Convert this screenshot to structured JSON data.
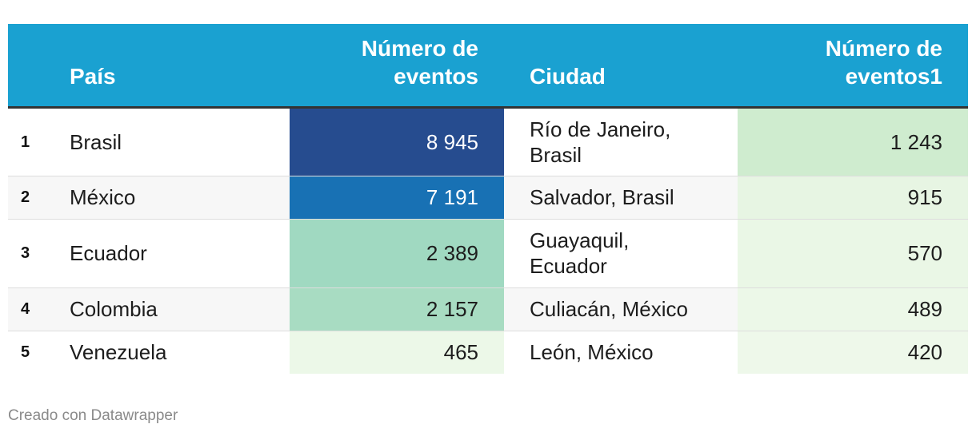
{
  "header": {
    "rank": "",
    "country": "País",
    "country_events": "Número de eventos",
    "city": "Ciudad",
    "city_events": "Número de eventos1"
  },
  "rows": [
    {
      "rank": "1",
      "country": "Brasil",
      "country_events": "8 945",
      "city": "Río de Janeiro, Brasil",
      "city_events": "1 243",
      "country_color": "#264c8f",
      "country_text_color": "#ffffff",
      "city_color": "#cfeccf"
    },
    {
      "rank": "2",
      "country": "México",
      "country_events": "7 191",
      "city": "Salvador, Brasil",
      "city_events": "915",
      "country_color": "#1871b4",
      "country_text_color": "#ffffff",
      "city_color": "#e7f5e3"
    },
    {
      "rank": "3",
      "country": "Ecuador",
      "country_events": "2 389",
      "city": "Guayaquil, Ecuador",
      "city_events": "570",
      "country_color": "#a0d9c1",
      "country_text_color": "#1d1d1d",
      "city_color": "#eaf7e6"
    },
    {
      "rank": "4",
      "country": "Colombia",
      "country_events": "2 157",
      "city": "Culiacán, México",
      "city_events": "489",
      "country_color": "#a8dcc2",
      "country_text_color": "#1d1d1d",
      "city_color": "#ecf8e8"
    },
    {
      "rank": "5",
      "country": "Venezuela",
      "country_events": "465",
      "city": "León, México",
      "city_events": "420",
      "country_color": "#ecf8e8",
      "country_text_color": "#1d1d1d",
      "city_color": "#eef8ea"
    }
  ],
  "chart_data": {
    "type": "table",
    "columns": [
      "",
      "País",
      "Número de eventos",
      "Ciudad",
      "Número de eventos1"
    ],
    "rows": [
      [
        "1",
        "Brasil",
        8945,
        "Río de Janeiro, Brasil",
        1243
      ],
      [
        "2",
        "México",
        7191,
        "Salvador, Brasil",
        915
      ],
      [
        "3",
        "Ecuador",
        2389,
        "Guayaquil, Ecuador",
        570
      ],
      [
        "4",
        "Colombia",
        2157,
        "Culiacán, México",
        489
      ],
      [
        "5",
        "Venezuela",
        465,
        "León, México",
        420
      ]
    ]
  },
  "colors": {
    "header_bg": "#1aa1d1",
    "header_text": "#ffffff",
    "footer_text": "#8a8a8a"
  },
  "footer": "Creado con Datawrapper"
}
